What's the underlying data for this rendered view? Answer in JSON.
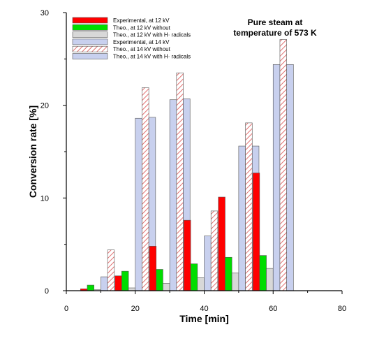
{
  "chart_data": {
    "type": "bar",
    "xlabel": "Time [min]",
    "ylabel": "Conversion rate [%]",
    "xlim": [
      0,
      80
    ],
    "ylim": [
      0,
      30
    ],
    "xticks": [
      0,
      20,
      40,
      60,
      80
    ],
    "yticks": [
      0,
      10,
      20,
      30
    ],
    "grid": false,
    "legend_position": "top-left",
    "annotation": [
      "Pure steam at",
      "temperature of 573 K"
    ],
    "x": [
      10,
      20,
      30,
      40,
      50,
      60
    ],
    "series": [
      {
        "name": "Experimental, at 12 kV",
        "values": [
          0.2,
          1.6,
          4.8,
          7.6,
          10.1,
          12.7
        ],
        "style": "solid",
        "color": "#ff0000"
      },
      {
        "name": "Theo., at 12 kV without",
        "values": [
          0.6,
          2.1,
          2.3,
          2.9,
          3.6,
          3.8
        ],
        "style": "solid",
        "color": "#00dd00"
      },
      {
        "name": "Theo., at 12 kV with H· radicals",
        "values": [
          0.1,
          0.3,
          0.8,
          1.4,
          1.9,
          2.4
        ],
        "style": "solid",
        "color": "#d8d8d8"
      },
      {
        "name": "Experimental, at 14 kV",
        "values": [
          1.5,
          18.6,
          20.6,
          5.9,
          15.6,
          24.4
        ],
        "style": "solid",
        "color": "#c8d0ee"
      },
      {
        "name": "Theo., at 14 kV without",
        "values": [
          4.4,
          21.9,
          23.5,
          8.6,
          18.1,
          27.1
        ],
        "style": "hatch",
        "color": "#e08080"
      },
      {
        "name": "Theo., at 14 kV with H· radicals",
        "values": [
          0.0,
          18.7,
          20.7,
          5.9,
          15.6,
          24.4
        ],
        "style": "solid",
        "color": "#c8d0ee"
      }
    ]
  }
}
